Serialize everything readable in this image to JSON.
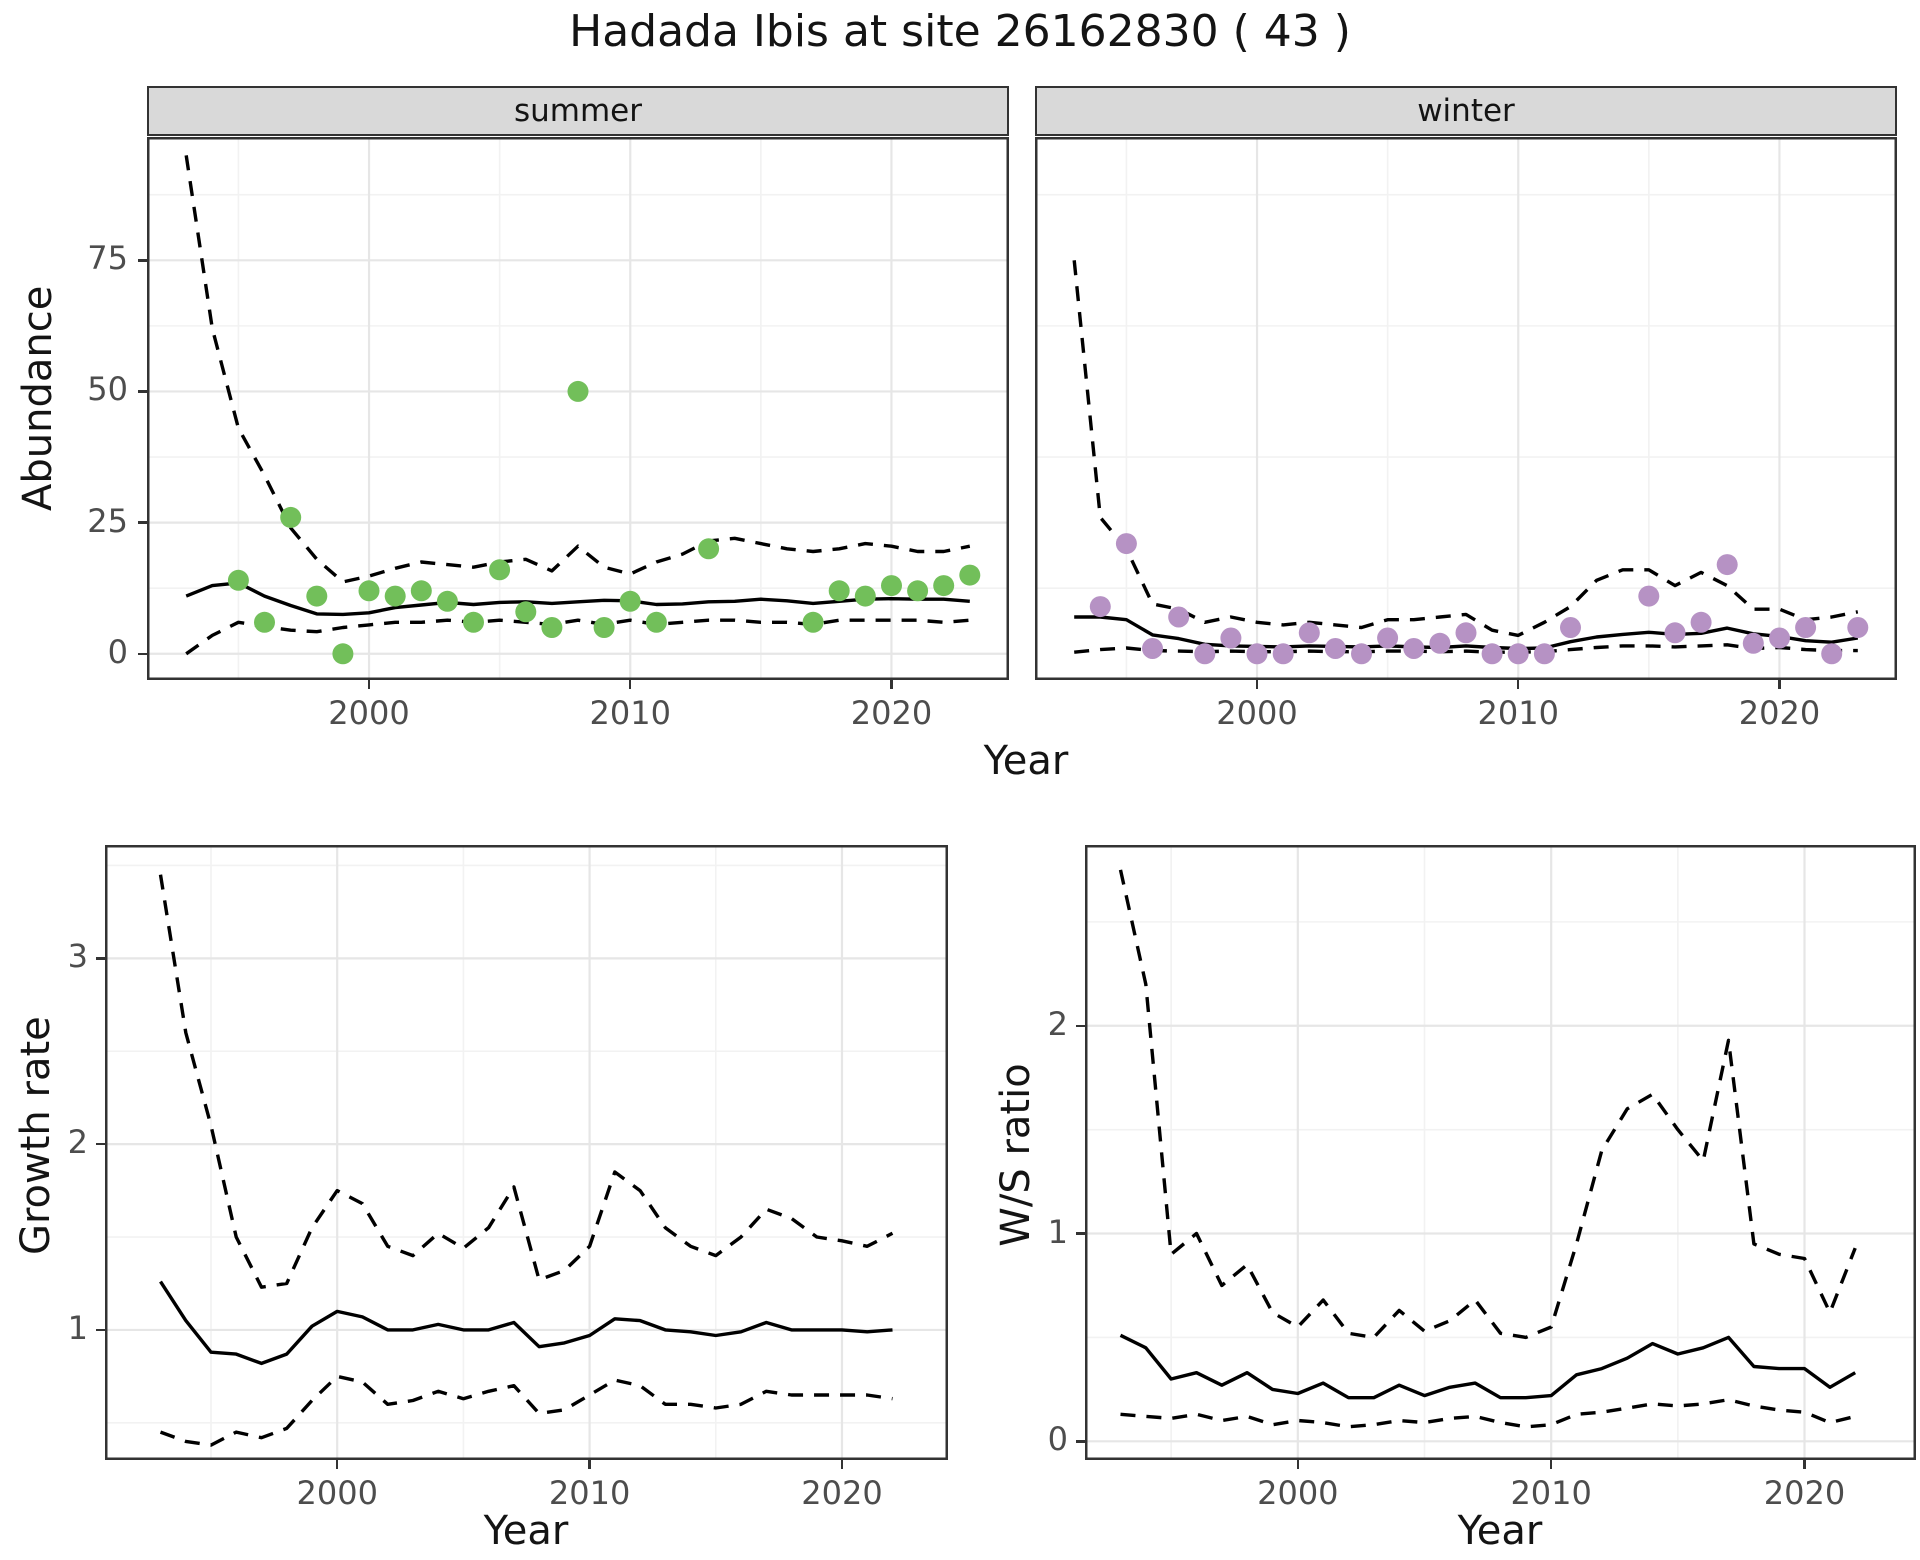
{
  "title": "Hadada Ibis at site 26162830 ( 43 )",
  "chart_data": {
    "type": "line",
    "description_series_style": {
      "median": "solid black line",
      "ci_bounds": "dashed black lines",
      "observations": "colored points"
    },
    "abundance": {
      "ylabel": "Abundance",
      "xlabel": "Year",
      "yticks": [
        0,
        25,
        50,
        75
      ],
      "xticks": [
        2000,
        2010,
        2020
      ],
      "ylim": [
        -5,
        98.5
      ],
      "xlim": [
        1991.5,
        2024.5
      ],
      "facets": [
        {
          "label": "summer",
          "point_color": "#72bf5a",
          "points": {
            "years": [
              1995,
              1996,
              1997,
              1998,
              1999,
              2000,
              2001,
              2002,
              2003,
              2004,
              2005,
              2006,
              2007,
              2008,
              2009,
              2010,
              2011,
              2013,
              2017,
              2018,
              2019,
              2020,
              2021,
              2022,
              2023
            ],
            "values": [
              14,
              6,
              26,
              11,
              0,
              12,
              11,
              12,
              10,
              6,
              16,
              8,
              5,
              50,
              5,
              10,
              6,
              20,
              6,
              12,
              11,
              13,
              12,
              13,
              15
            ]
          },
          "median": {
            "years": [
              1993,
              1994,
              1995,
              1996,
              1997,
              1998,
              1999,
              2000,
              2001,
              2002,
              2003,
              2004,
              2005,
              2006,
              2007,
              2008,
              2009,
              2010,
              2011,
              2012,
              2013,
              2014,
              2015,
              2016,
              2017,
              2018,
              2019,
              2020,
              2021,
              2022,
              2023
            ],
            "values": [
              11,
              13,
              13.5,
              11,
              9.2,
              7.6,
              7.5,
              7.8,
              8.8,
              9.3,
              9.8,
              9.4,
              9.8,
              9.9,
              9.6,
              9.9,
              10.2,
              10.1,
              9.4,
              9.5,
              9.9,
              10,
              10.4,
              10.1,
              9.6,
              10,
              10.4,
              10.5,
              10.4,
              10.4,
              10
            ]
          },
          "upper": {
            "years": [
              1993,
              1994,
              1995,
              1996,
              1997,
              1998,
              1999,
              2000,
              2001,
              2002,
              2003,
              2004,
              2005,
              2006,
              2007,
              2008,
              2009,
              2010,
              2011,
              2012,
              2013,
              2014,
              2015,
              2016,
              2017,
              2018,
              2019,
              2020,
              2021,
              2022,
              2023
            ],
            "values": [
              95,
              62,
              43,
              34,
              24,
              18,
              13.7,
              14.8,
              16.3,
              17.5,
              17,
              16.5,
              17.5,
              18,
              15.8,
              20.5,
              16.5,
              15.2,
              17.5,
              19,
              21.5,
              22,
              21,
              20,
              19.5,
              20,
              21,
              20.5,
              19.5,
              19.5,
              20.5
            ]
          },
          "lower": {
            "years": [
              1993,
              1994,
              1995,
              1996,
              1997,
              1998,
              1999,
              2000,
              2001,
              2002,
              2003,
              2004,
              2005,
              2006,
              2007,
              2008,
              2009,
              2010,
              2011,
              2012,
              2013,
              2014,
              2015,
              2016,
              2017,
              2018,
              2019,
              2020,
              2021,
              2022,
              2023
            ],
            "values": [
              0,
              3.5,
              6,
              5.2,
              4.5,
              4.2,
              5,
              5.5,
              6,
              6,
              6.4,
              6,
              6.4,
              6,
              5.6,
              6.4,
              5.6,
              6.4,
              5.6,
              6,
              6.4,
              6.4,
              6,
              6,
              5.6,
              6.4,
              6.4,
              6.4,
              6.4,
              6,
              6.4
            ]
          }
        },
        {
          "label": "winter",
          "point_color": "#b692c4",
          "points": {
            "years": [
              1994,
              1995,
              1996,
              1997,
              1998,
              1999,
              2000,
              2001,
              2002,
              2003,
              2004,
              2005,
              2006,
              2007,
              2008,
              2009,
              2010,
              2011,
              2012,
              2015,
              2016,
              2017,
              2018,
              2019,
              2020,
              2021,
              2022,
              2023
            ],
            "values": [
              9,
              21,
              1,
              7,
              0,
              3,
              0,
              0,
              4,
              1,
              0,
              3,
              1,
              2,
              4,
              0,
              0,
              0,
              5,
              11,
              4,
              6,
              17,
              2,
              3,
              5,
              0,
              5
            ]
          },
          "median": {
            "years": [
              1993,
              1994,
              1995,
              1996,
              1997,
              1998,
              1999,
              2000,
              2001,
              2002,
              2003,
              2004,
              2005,
              2006,
              2007,
              2008,
              2009,
              2010,
              2011,
              2012,
              2013,
              2014,
              2015,
              2016,
              2017,
              2018,
              2019,
              2020,
              2021,
              2022,
              2023
            ],
            "values": [
              7,
              7,
              6.5,
              3.6,
              2.9,
              1.8,
              1.5,
              1.4,
              1.3,
              1.5,
              1.4,
              1.3,
              1.5,
              1.3,
              1.2,
              1.5,
              1.2,
              1,
              1.1,
              2.3,
              3.2,
              3.7,
              4.1,
              3.7,
              3.9,
              4.9,
              3.8,
              3.3,
              2.5,
              2.2,
              3
            ]
          },
          "upper": {
            "years": [
              1993,
              1994,
              1995,
              1996,
              1997,
              1998,
              1999,
              2000,
              2001,
              2002,
              2003,
              2004,
              2005,
              2006,
              2007,
              2008,
              2009,
              2010,
              2011,
              2012,
              2013,
              2014,
              2015,
              2016,
              2017,
              2018,
              2019,
              2020,
              2021,
              2022,
              2023
            ],
            "values": [
              75,
              26,
              20,
              9.5,
              8.5,
              6,
              7,
              6,
              5.5,
              6,
              5.5,
              5,
              6.5,
              6.5,
              7,
              7.5,
              4.5,
              3.5,
              6,
              9,
              14,
              16,
              16,
              13,
              15.5,
              13,
              8.5,
              8.5,
              6.5,
              7,
              8
            ]
          },
          "lower": {
            "years": [
              1993,
              1994,
              1995,
              1996,
              1997,
              1998,
              1999,
              2000,
              2001,
              2002,
              2003,
              2004,
              2005,
              2006,
              2007,
              2008,
              2009,
              2010,
              2011,
              2012,
              2013,
              2014,
              2015,
              2016,
              2017,
              2018,
              2019,
              2020,
              2021,
              2022,
              2023
            ],
            "values": [
              0.3,
              0.8,
              1.1,
              0.6,
              0.5,
              0.4,
              0.5,
              0.4,
              0.4,
              0.5,
              0.4,
              0.4,
              0.5,
              0.5,
              0.4,
              0.5,
              0.3,
              0.3,
              0.4,
              0.8,
              1.2,
              1.5,
              1.5,
              1.3,
              1.5,
              1.7,
              1,
              1.2,
              0.8,
              0.6,
              0.6
            ]
          }
        }
      ]
    },
    "growth_rate": {
      "ylabel": "Growth rate",
      "xlabel": "Year",
      "yticks": [
        1,
        2,
        3
      ],
      "xticks": [
        2000,
        2010,
        2020
      ],
      "ylim": [
        0.3,
        3.61
      ],
      "xlim": [
        1990.8,
        2024.2
      ],
      "median": {
        "years": [
          1993,
          1994,
          1995,
          1996,
          1997,
          1998,
          1999,
          2000,
          2001,
          2002,
          2003,
          2004,
          2005,
          2006,
          2007,
          2008,
          2009,
          2010,
          2011,
          2012,
          2013,
          2014,
          2015,
          2016,
          2017,
          2018,
          2019,
          2020,
          2021,
          2022
        ],
        "values": [
          1.26,
          1.05,
          0.88,
          0.87,
          0.82,
          0.87,
          1.02,
          1.1,
          1.07,
          1,
          1,
          1.03,
          1,
          1,
          1.04,
          0.91,
          0.93,
          0.97,
          1.06,
          1.05,
          1,
          0.99,
          0.97,
          0.99,
          1.04,
          1,
          1,
          1,
          0.99,
          1
        ]
      },
      "upper": {
        "years": [
          1993,
          1994,
          1995,
          1996,
          1997,
          1998,
          1999,
          2000,
          2001,
          2002,
          2003,
          2004,
          2005,
          2006,
          2007,
          2008,
          2009,
          2010,
          2011,
          2012,
          2013,
          2014,
          2015,
          2016,
          2017,
          2018,
          2019,
          2020,
          2021,
          2022
        ],
        "values": [
          3.45,
          2.6,
          2.1,
          1.5,
          1.23,
          1.25,
          1.55,
          1.75,
          1.68,
          1.45,
          1.4,
          1.52,
          1.44,
          1.55,
          1.77,
          1.27,
          1.32,
          1.45,
          1.85,
          1.75,
          1.55,
          1.45,
          1.4,
          1.5,
          1.65,
          1.6,
          1.5,
          1.48,
          1.45,
          1.52
        ]
      },
      "lower": {
        "years": [
          1993,
          1994,
          1995,
          1996,
          1997,
          1998,
          1999,
          2000,
          2001,
          2002,
          2003,
          2004,
          2005,
          2006,
          2007,
          2008,
          2009,
          2010,
          2011,
          2012,
          2013,
          2014,
          2015,
          2016,
          2017,
          2018,
          2019,
          2020,
          2021,
          2022
        ],
        "values": [
          0.45,
          0.4,
          0.38,
          0.45,
          0.42,
          0.47,
          0.62,
          0.75,
          0.72,
          0.6,
          0.62,
          0.67,
          0.63,
          0.67,
          0.7,
          0.55,
          0.57,
          0.65,
          0.73,
          0.7,
          0.6,
          0.6,
          0.58,
          0.6,
          0.67,
          0.65,
          0.65,
          0.65,
          0.65,
          0.63
        ]
      }
    },
    "ws_ratio": {
      "ylabel": "W/S ratio",
      "xlabel": "Year",
      "yticks": [
        0,
        1,
        2
      ],
      "xticks": [
        2000,
        2010,
        2020
      ],
      "ylim": [
        -0.09,
        2.87
      ],
      "xlim": [
        1991.6,
        2024.4
      ],
      "median": {
        "years": [
          1993,
          1994,
          1995,
          1996,
          1997,
          1998,
          1999,
          2000,
          2001,
          2002,
          2003,
          2004,
          2005,
          2006,
          2007,
          2008,
          2009,
          2010,
          2011,
          2012,
          2013,
          2014,
          2015,
          2016,
          2017,
          2018,
          2019,
          2020,
          2021,
          2022
        ],
        "values": [
          0.51,
          0.45,
          0.3,
          0.33,
          0.27,
          0.33,
          0.25,
          0.23,
          0.28,
          0.21,
          0.21,
          0.27,
          0.22,
          0.26,
          0.28,
          0.21,
          0.21,
          0.22,
          0.32,
          0.35,
          0.4,
          0.47,
          0.42,
          0.45,
          0.5,
          0.36,
          0.35,
          0.35,
          0.26,
          0.33
        ]
      },
      "upper": {
        "years": [
          1993,
          1994,
          1995,
          1996,
          1997,
          1998,
          1999,
          2000,
          2001,
          2002,
          2003,
          2004,
          2005,
          2006,
          2007,
          2008,
          2009,
          2010,
          2011,
          2012,
          2013,
          2014,
          2015,
          2016,
          2017,
          2018,
          2019,
          2020,
          2021,
          2022
        ],
        "values": [
          2.75,
          2.2,
          0.9,
          1,
          0.75,
          0.85,
          0.62,
          0.55,
          0.68,
          0.52,
          0.5,
          0.63,
          0.53,
          0.58,
          0.68,
          0.52,
          0.5,
          0.55,
          0.95,
          1.4,
          1.6,
          1.67,
          1.5,
          1.35,
          1.93,
          0.95,
          0.9,
          0.88,
          0.62,
          0.93
        ]
      },
      "lower": {
        "years": [
          1993,
          1994,
          1995,
          1996,
          1997,
          1998,
          1999,
          2000,
          2001,
          2002,
          2003,
          2004,
          2005,
          2006,
          2007,
          2008,
          2009,
          2010,
          2011,
          2012,
          2013,
          2014,
          2015,
          2016,
          2017,
          2018,
          2019,
          2020,
          2021,
          2022
        ],
        "values": [
          0.13,
          0.12,
          0.11,
          0.13,
          0.1,
          0.12,
          0.08,
          0.1,
          0.09,
          0.07,
          0.08,
          0.1,
          0.09,
          0.11,
          0.12,
          0.09,
          0.07,
          0.08,
          0.13,
          0.14,
          0.16,
          0.18,
          0.17,
          0.18,
          0.2,
          0.17,
          0.15,
          0.14,
          0.09,
          0.12
        ]
      }
    },
    "colors": {
      "summer_points": "#72bf5a",
      "winter_points": "#b692c4",
      "line": "#000000",
      "grid_major": "#e6e6e6",
      "grid_minor": "#f2f2f2",
      "panel_border": "#333333",
      "strip_fill": "#d9d9d9"
    }
  }
}
